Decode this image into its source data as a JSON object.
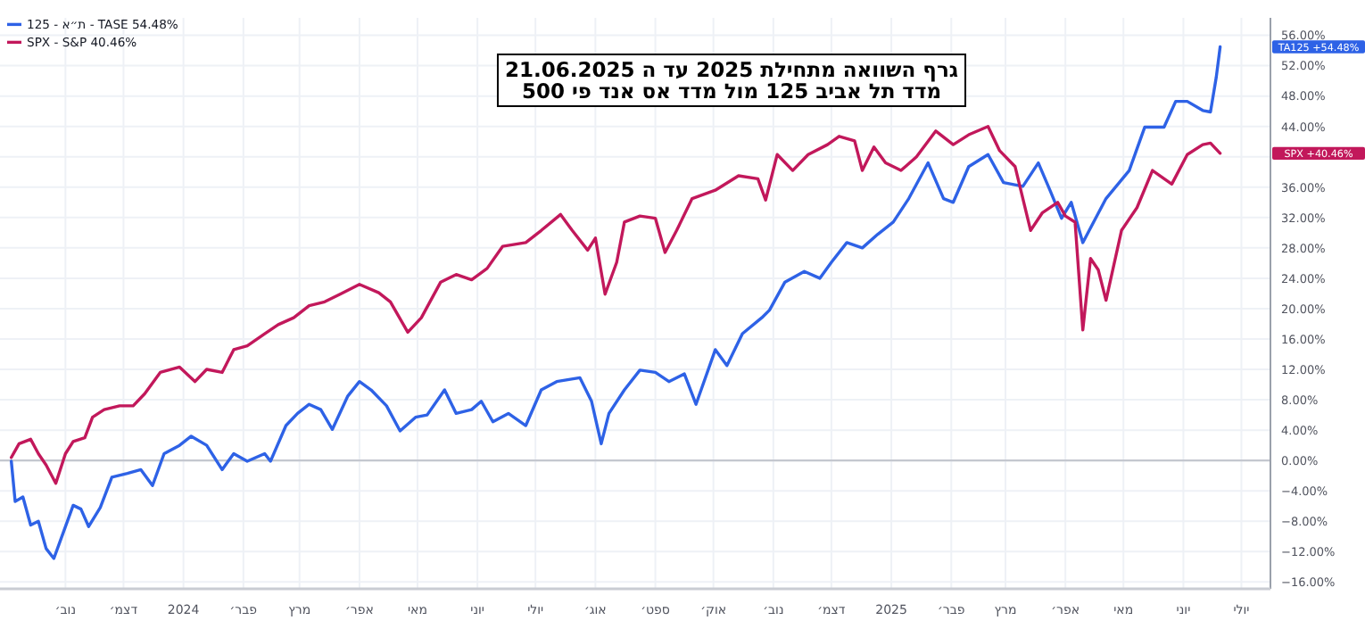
{
  "chart_data": {
    "type": "line",
    "title": "גרף השוואה מתחילת 2025 עד ה 21.06.2025",
    "subtitle": "מדד תל אביב 125 מול מדד אס אנד פי 500",
    "xlim": [
      "2023-09-30",
      "2025-07-16"
    ],
    "ylim": [
      -16.9,
      58.3
    ],
    "grid": true,
    "legend": "top left",
    "xticks": [
      {
        "value": "2023-11-01",
        "label": "נוב׳"
      },
      {
        "value": "2023-12-01",
        "label": "דצמ׳"
      },
      {
        "value": "2024-01-01",
        "label": "2024"
      },
      {
        "value": "2024-02-01",
        "label": "פבר׳"
      },
      {
        "value": "2024-03-01",
        "label": "מרץ"
      },
      {
        "value": "2024-04-01",
        "label": "אפר׳"
      },
      {
        "value": "2024-05-01",
        "label": "מאי"
      },
      {
        "value": "2024-06-01",
        "label": "יוני"
      },
      {
        "value": "2024-07-01",
        "label": "יולי"
      },
      {
        "value": "2024-08-01",
        "label": "אוג׳"
      },
      {
        "value": "2024-09-01",
        "label": "ספט׳"
      },
      {
        "value": "2024-10-01",
        "label": "אוק׳"
      },
      {
        "value": "2024-11-01",
        "label": "נוב׳"
      },
      {
        "value": "2024-12-01",
        "label": "דצמ׳"
      },
      {
        "value": "2025-01-01",
        "label": "2025"
      },
      {
        "value": "2025-02-01",
        "label": "פבר׳"
      },
      {
        "value": "2025-03-01",
        "label": "מרץ"
      },
      {
        "value": "2025-04-01",
        "label": "אפר׳"
      },
      {
        "value": "2025-05-01",
        "label": "מאי"
      },
      {
        "value": "2025-06-01",
        "label": "יוני"
      },
      {
        "value": "2025-07-01",
        "label": "יולי"
      }
    ],
    "yticks": [
      {
        "value": 56,
        "label": "56.00%"
      },
      {
        "value": 52,
        "label": "52.00%"
      },
      {
        "value": 48,
        "label": "48.00%"
      },
      {
        "value": 44,
        "label": "44.00%"
      },
      {
        "value": 40,
        "label": null
      },
      {
        "value": 36,
        "label": "36.00%"
      },
      {
        "value": 32,
        "label": "32.00%"
      },
      {
        "value": 28,
        "label": "28.00%"
      },
      {
        "value": 24,
        "label": "24.00%"
      },
      {
        "value": 20,
        "label": "20.00%"
      },
      {
        "value": 16,
        "label": "16.00%"
      },
      {
        "value": 12,
        "label": "12.00%"
      },
      {
        "value": 8,
        "label": "8.00%"
      },
      {
        "value": 4,
        "label": "4.00%"
      },
      {
        "value": 0,
        "label": "0.00%"
      },
      {
        "value": -4,
        "label": "−4.00%"
      },
      {
        "value": -8,
        "label": "−8.00%"
      },
      {
        "value": -12,
        "label": "−12.00%"
      },
      {
        "value": -16,
        "label": "−16.00%"
      }
    ],
    "ref_lines": [
      {
        "axis": "y",
        "value": 0,
        "color": "#c4c7cf"
      }
    ],
    "annotations": [
      "TA125 +54.48%",
      "SPX +40.46%"
    ],
    "series": [
      {
        "name": "ת״א - 125 - TASE 54.48%",
        "color": "#2e62e6",
        "x": [
          "2023-10-04",
          "2023-10-06",
          "2023-10-10",
          "2023-10-14",
          "2023-10-18",
          "2023-10-22",
          "2023-10-26",
          "2023-10-30",
          "2023-11-05",
          "2023-11-09",
          "2023-11-13",
          "2023-11-19",
          "2023-11-25",
          "2023-12-03",
          "2023-12-10",
          "2023-12-16",
          "2023-12-22",
          "2023-12-30",
          "2024-01-05",
          "2024-01-13",
          "2024-01-21",
          "2024-01-27",
          "2024-02-03",
          "2024-02-12",
          "2024-02-15",
          "2024-02-23",
          "2024-02-29",
          "2024-03-06",
          "2024-03-12",
          "2024-03-18",
          "2024-03-26",
          "2024-04-01",
          "2024-04-07",
          "2024-04-15",
          "2024-04-22",
          "2024-04-30",
          "2024-05-06",
          "2024-05-15",
          "2024-05-21",
          "2024-05-29",
          "2024-06-03",
          "2024-06-09",
          "2024-06-17",
          "2024-06-26",
          "2024-07-04",
          "2024-07-12",
          "2024-07-24",
          "2024-07-30",
          "2024-08-04",
          "2024-08-08",
          "2024-08-16",
          "2024-08-24",
          "2024-09-01",
          "2024-09-08",
          "2024-09-16",
          "2024-09-22",
          "2024-10-02",
          "2024-10-08",
          "2024-10-16",
          "2024-10-26",
          "2024-10-30",
          "2024-11-07",
          "2024-11-17",
          "2024-11-25",
          "2024-12-01",
          "2024-12-09",
          "2024-12-17",
          "2024-12-25",
          "2025-01-02",
          "2025-01-10",
          "2025-01-20",
          "2025-01-28",
          "2025-02-02",
          "2025-02-10",
          "2025-02-20",
          "2025-02-28",
          "2025-03-10",
          "2025-03-18",
          "2025-03-24",
          "2025-03-30",
          "2025-04-04",
          "2025-04-10",
          "2025-04-22",
          "2025-05-04",
          "2025-05-12",
          "2025-05-22",
          "2025-05-28",
          "2025-06-03",
          "2025-06-11",
          "2025-06-15",
          "2025-06-18",
          "2025-06-20"
        ],
        "values": [
          -0.1,
          -5.4,
          -4.8,
          -8.5,
          -8.0,
          -11.6,
          -12.9,
          -10.1,
          -5.9,
          -6.4,
          -8.7,
          -6.2,
          -2.2,
          -1.7,
          -1.2,
          -3.3,
          0.9,
          2.0,
          3.2,
          2.0,
          -1.2,
          0.9,
          -0.1,
          0.9,
          -0.1,
          4.6,
          6.2,
          7.4,
          6.7,
          4.1,
          8.5,
          10.4,
          9.3,
          7.2,
          3.9,
          5.7,
          6.0,
          9.3,
          6.2,
          6.7,
          7.8,
          5.1,
          6.2,
          4.6,
          9.3,
          10.4,
          10.9,
          7.8,
          2.2,
          6.2,
          9.3,
          11.9,
          11.6,
          10.4,
          11.4,
          7.4,
          14.6,
          12.5,
          16.7,
          18.8,
          19.8,
          23.5,
          24.9,
          24.0,
          26.1,
          28.7,
          28.0,
          29.8,
          31.4,
          34.5,
          39.2,
          34.5,
          34.0,
          38.7,
          40.3,
          36.6,
          36.1,
          39.2,
          35.6,
          31.9,
          34.0,
          28.7,
          34.5,
          38.2,
          43.9,
          43.9,
          47.3,
          47.3,
          46.1,
          45.9,
          50.5,
          54.48
        ]
      },
      {
        "name": "SPX - S&P 40.46%",
        "color": "#c2185b",
        "x": [
          "2023-10-04",
          "2023-10-08",
          "2023-10-14",
          "2023-10-18",
          "2023-10-22",
          "2023-10-27",
          "2023-11-01",
          "2023-11-05",
          "2023-11-11",
          "2023-11-15",
          "2023-11-21",
          "2023-11-29",
          "2023-12-06",
          "2023-12-12",
          "2023-12-20",
          "2023-12-30",
          "2024-01-07",
          "2024-01-13",
          "2024-01-21",
          "2024-01-27",
          "2024-02-03",
          "2024-02-12",
          "2024-02-19",
          "2024-02-27",
          "2024-03-06",
          "2024-03-14",
          "2024-03-22",
          "2024-04-01",
          "2024-04-11",
          "2024-04-17",
          "2024-04-26",
          "2024-05-03",
          "2024-05-13",
          "2024-05-21",
          "2024-05-29",
          "2024-06-06",
          "2024-06-14",
          "2024-06-26",
          "2024-07-04",
          "2024-07-14",
          "2024-07-20",
          "2024-07-28",
          "2024-08-01",
          "2024-08-06",
          "2024-08-12",
          "2024-08-16",
          "2024-08-24",
          "2024-09-01",
          "2024-09-06",
          "2024-09-12",
          "2024-09-20",
          "2024-10-02",
          "2024-10-14",
          "2024-10-24",
          "2024-10-28",
          "2024-11-03",
          "2024-11-11",
          "2024-11-19",
          "2024-11-29",
          "2024-12-05",
          "2024-12-13",
          "2024-12-17",
          "2024-12-23",
          "2024-12-29",
          "2025-01-06",
          "2025-01-14",
          "2025-01-24",
          "2025-02-02",
          "2025-02-10",
          "2025-02-20",
          "2025-02-26",
          "2025-03-06",
          "2025-03-14",
          "2025-03-20",
          "2025-03-28",
          "2025-04-01",
          "2025-04-06",
          "2025-04-10",
          "2025-04-14",
          "2025-04-18",
          "2025-04-22",
          "2025-04-30",
          "2025-05-08",
          "2025-05-16",
          "2025-05-26",
          "2025-06-03",
          "2025-06-11",
          "2025-06-15",
          "2025-06-20"
        ],
        "values": [
          0.4,
          2.2,
          2.8,
          0.9,
          -0.6,
          -3.0,
          0.9,
          2.5,
          3.0,
          5.7,
          6.7,
          7.2,
          7.2,
          8.8,
          11.6,
          12.3,
          10.4,
          12.0,
          11.6,
          14.6,
          15.1,
          16.7,
          17.9,
          18.8,
          20.4,
          20.9,
          21.9,
          23.2,
          22.1,
          20.9,
          16.9,
          18.8,
          23.5,
          24.5,
          23.8,
          25.3,
          28.2,
          28.7,
          30.3,
          32.4,
          30.3,
          27.7,
          29.3,
          21.9,
          26.1,
          31.4,
          32.2,
          31.9,
          27.4,
          30.3,
          34.5,
          35.6,
          37.5,
          37.1,
          34.3,
          40.3,
          38.2,
          40.3,
          41.6,
          42.7,
          42.1,
          38.2,
          41.3,
          39.2,
          38.2,
          40.0,
          43.4,
          41.6,
          42.9,
          44.0,
          40.8,
          38.7,
          30.3,
          32.6,
          34.0,
          32.2,
          31.4,
          17.2,
          26.6,
          25.1,
          21.1,
          30.3,
          33.3,
          38.2,
          36.4,
          40.3,
          41.6,
          41.8,
          40.46
        ]
      }
    ]
  }
}
